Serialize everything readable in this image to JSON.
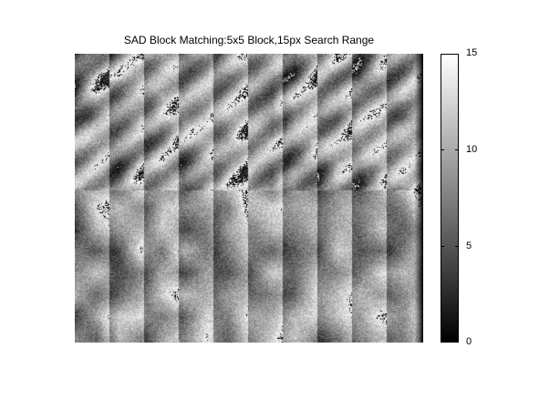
{
  "chart_data": {
    "type": "heatmap",
    "title": "SAD Block Matching:5x5 Block,15px Search Range",
    "colormap": "gray",
    "color_range": [
      0,
      15
    ],
    "colorbar_ticks": [
      "0",
      "5",
      "10",
      "15"
    ],
    "colorbar_tick_values": [
      0,
      5,
      10,
      15
    ],
    "axes_visible": false,
    "grid": false
  }
}
